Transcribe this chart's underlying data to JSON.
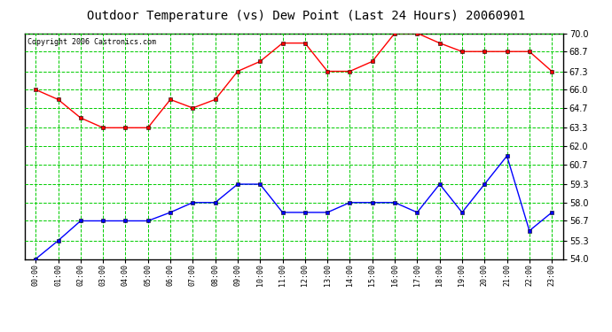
{
  "title": "Outdoor Temperature (vs) Dew Point (Last 24 Hours) 20060901",
  "copyright": "Copyright 2006 Castronics.com",
  "x_labels": [
    "00:00",
    "01:00",
    "02:00",
    "03:00",
    "04:00",
    "05:00",
    "06:00",
    "07:00",
    "08:00",
    "09:00",
    "10:00",
    "11:00",
    "12:00",
    "13:00",
    "14:00",
    "15:00",
    "16:00",
    "17:00",
    "18:00",
    "19:00",
    "20:00",
    "21:00",
    "22:00",
    "23:00"
  ],
  "temp_data": [
    66.0,
    65.3,
    64.0,
    63.3,
    63.3,
    63.3,
    65.3,
    64.7,
    65.3,
    67.3,
    68.0,
    69.3,
    69.3,
    67.3,
    67.3,
    68.0,
    70.0,
    70.0,
    69.3,
    68.7,
    68.7,
    68.7,
    68.7,
    67.3
  ],
  "dew_data": [
    54.0,
    55.3,
    56.7,
    56.7,
    56.7,
    56.7,
    57.3,
    58.0,
    58.0,
    59.3,
    59.3,
    57.3,
    57.3,
    57.3,
    58.0,
    58.0,
    58.0,
    57.3,
    59.3,
    57.3,
    59.3,
    61.3,
    56.0,
    57.3
  ],
  "temp_color": "#ff0000",
  "dew_color": "#0000ff",
  "bg_color": "#ffffff",
  "plot_bg_color": "#ffffff",
  "grid_color": "#00cc00",
  "y_min": 54.0,
  "y_max": 70.0,
  "y_ticks": [
    54.0,
    55.3,
    56.7,
    58.0,
    59.3,
    60.7,
    62.0,
    63.3,
    64.7,
    66.0,
    67.3,
    68.7,
    70.0
  ],
  "title_fontsize": 10,
  "copyright_fontsize": 6,
  "marker": "s",
  "marker_size": 2.5,
  "line_width": 1.0
}
